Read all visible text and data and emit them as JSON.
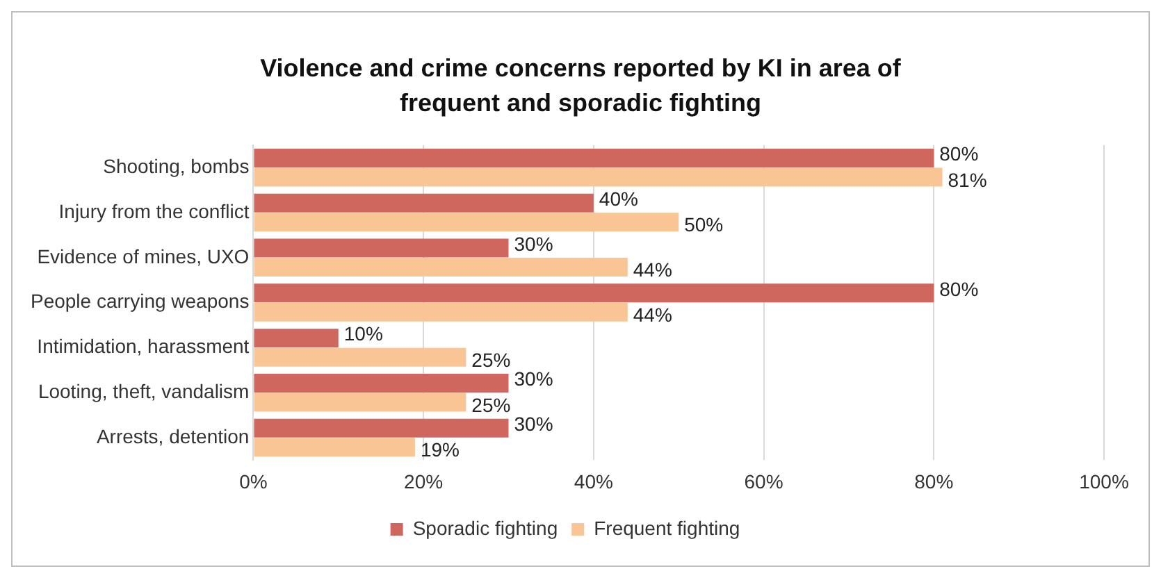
{
  "chart_data": {
    "type": "bar",
    "orientation": "horizontal",
    "title": "Violence and crime concerns reported by KI in area of frequent and sporadic fighting",
    "categories": [
      "Shooting, bombs",
      "Injury from the conflict",
      "Evidence of mines, UXO",
      "People carrying weapons",
      "Intimidation, harassment",
      "Looting, theft, vandalism",
      "Arrests, detention"
    ],
    "series": [
      {
        "name": "Sporadic fighting",
        "color": "#d0675f",
        "values": [
          80,
          40,
          30,
          80,
          10,
          30,
          30
        ],
        "value_labels": [
          "80%",
          "40%",
          "30%",
          "80%",
          "10%",
          "30%",
          "30%"
        ]
      },
      {
        "name": "Frequent fighting",
        "color": "#fac595",
        "values": [
          81,
          50,
          44,
          44,
          25,
          25,
          19
        ],
        "value_labels": [
          "81%",
          "50%",
          "44%",
          "44%",
          "25%",
          "25%",
          "19%"
        ]
      }
    ],
    "xlim": [
      0,
      100
    ],
    "xticks": [
      {
        "value": 0,
        "label": "0%"
      },
      {
        "value": 20,
        "label": "20%"
      },
      {
        "value": 40,
        "label": "40%"
      },
      {
        "value": 60,
        "label": "60%"
      },
      {
        "value": 80,
        "label": "80%"
      },
      {
        "value": 100,
        "label": "100%"
      }
    ],
    "grid": "x",
    "legend": "bottom"
  }
}
